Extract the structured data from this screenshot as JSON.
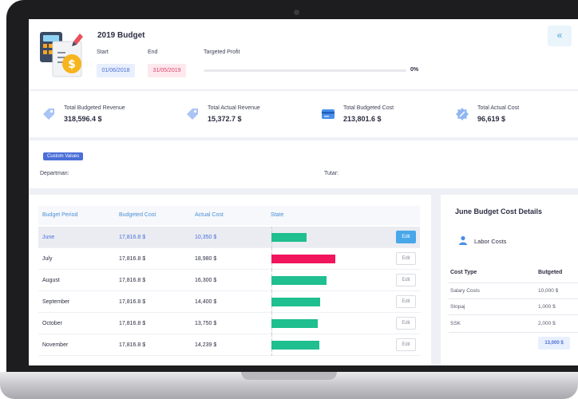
{
  "budget": {
    "title": "2019 Budget",
    "start_label": "Start",
    "start_date": "01/06/2018",
    "end_label": "End",
    "end_date": "31/05/2019",
    "profit_label": "Targeted Profit",
    "profit_value": "0%",
    "profit_fraction": 0,
    "collapse_glyph": "«"
  },
  "stats": [
    {
      "title": "Total Budgeted Revenue",
      "value": "318,596.4 $",
      "icon": "tag-icon"
    },
    {
      "title": "Total Actual Revenue",
      "value": "15,372.7 $",
      "icon": "tag-icon"
    },
    {
      "title": "Total Budgeted Cost",
      "value": "213,801.6 $",
      "icon": "credit-card-icon"
    },
    {
      "title": "Total Actual Cost",
      "value": "96,619 $",
      "icon": "badge-icon"
    }
  ],
  "custom_values": {
    "badge": "Custom Values",
    "department_label": "Departman:",
    "amount_label": "Tutar:"
  },
  "table": {
    "headers": [
      "Budget Period",
      "Budgeted Cost",
      "Actual Cost",
      "State"
    ],
    "edit_label": "Edit",
    "rows": [
      {
        "period": "June",
        "budgeted": "17,816.8 $",
        "actual": "10,350 $",
        "state_ratio": 0.58,
        "state_color": "#1fbf8f",
        "selected": true
      },
      {
        "period": "July",
        "budgeted": "17,816.8 $",
        "actual": "18,980 $",
        "state_ratio": 1.065,
        "state_color": "#f0155d",
        "selected": false
      },
      {
        "period": "August",
        "budgeted": "17,816.8 $",
        "actual": "16,300 $",
        "state_ratio": 0.915,
        "state_color": "#1fbf8f",
        "selected": false
      },
      {
        "period": "September",
        "budgeted": "17,816.8 $",
        "actual": "14,400 $",
        "state_ratio": 0.81,
        "state_color": "#1fbf8f",
        "selected": false
      },
      {
        "period": "October",
        "budgeted": "17,816.8 $",
        "actual": "13,750 $",
        "state_ratio": 0.77,
        "state_color": "#1fbf8f",
        "selected": false
      },
      {
        "period": "November",
        "budgeted": "17,816.8 $",
        "actual": "14,239 $",
        "state_ratio": 0.8,
        "state_color": "#1fbf8f",
        "selected": false
      }
    ]
  },
  "details": {
    "title": "June Budget Cost Details",
    "group_label": "Labor Costs",
    "col_type": "Cost Type",
    "col_budgeted": "Butgeted",
    "rows": [
      {
        "type": "Salary Costs",
        "value": "10,000 $"
      },
      {
        "type": "Stopaj",
        "value": "1,000 $"
      },
      {
        "type": "SSK",
        "value": "2,000 $"
      }
    ],
    "total": "13,000 $"
  }
}
